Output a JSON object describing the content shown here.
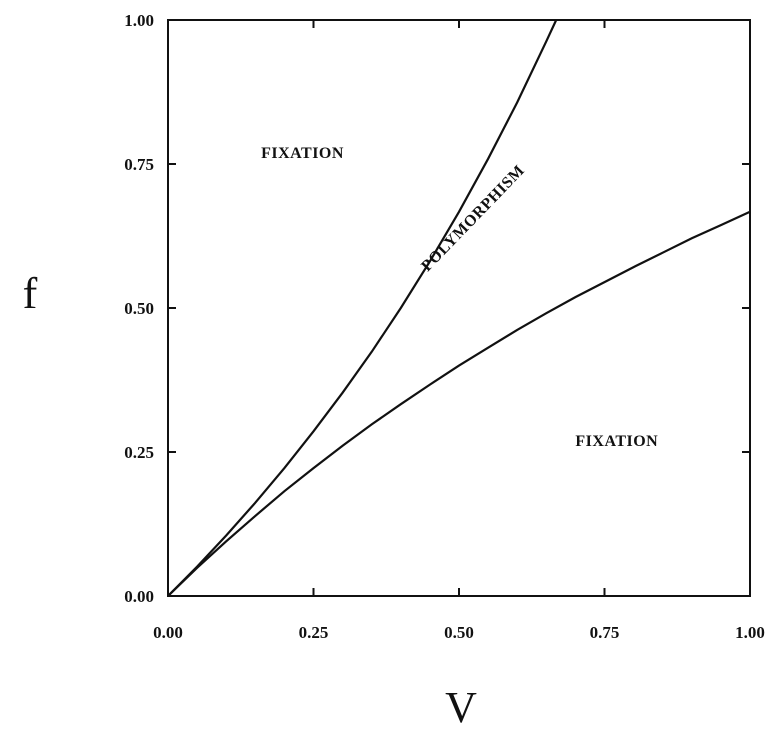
{
  "chart_data": {
    "type": "line",
    "xlabel": "V",
    "ylabel": "f",
    "xlim": [
      0,
      1
    ],
    "ylim": [
      0,
      1
    ],
    "x_ticks": [
      "0.00",
      "0.25",
      "0.50",
      "0.75",
      "1.00"
    ],
    "y_ticks": [
      "0.00",
      "0.25",
      "0.50",
      "0.75",
      "1.00"
    ],
    "grid": false,
    "legend": "none",
    "series": [
      {
        "x": [
          0.0,
          0.05,
          0.1,
          0.15,
          0.2,
          0.25,
          0.3,
          0.35,
          0.4,
          0.45,
          0.5,
          0.55,
          0.6,
          0.65,
          0.667
        ],
        "values": [
          0.0,
          0.051,
          0.105,
          0.162,
          0.222,
          0.286,
          0.353,
          0.424,
          0.5,
          0.581,
          0.667,
          0.759,
          0.857,
          0.963,
          1.0
        ]
      },
      {
        "x": [
          0.0,
          0.05,
          0.1,
          0.15,
          0.2,
          0.25,
          0.3,
          0.35,
          0.4,
          0.45,
          0.5,
          0.55,
          0.6,
          0.65,
          0.7,
          0.75,
          0.8,
          0.85,
          0.9,
          0.95,
          1.0
        ],
        "values": [
          0.0,
          0.049,
          0.095,
          0.139,
          0.182,
          0.222,
          0.261,
          0.298,
          0.333,
          0.367,
          0.4,
          0.431,
          0.462,
          0.491,
          0.519,
          0.545,
          0.571,
          0.596,
          0.621,
          0.644,
          0.667
        ]
      }
    ],
    "annotations": [
      {
        "text": "FIXATION",
        "x": 0.16,
        "y": 0.76,
        "rotation": 0
      },
      {
        "text": "POLYMORPHISM",
        "x": 0.53,
        "y": 0.65,
        "rotation": -46
      },
      {
        "text": "FIXATION",
        "x": 0.7,
        "y": 0.26,
        "rotation": 0
      }
    ]
  }
}
